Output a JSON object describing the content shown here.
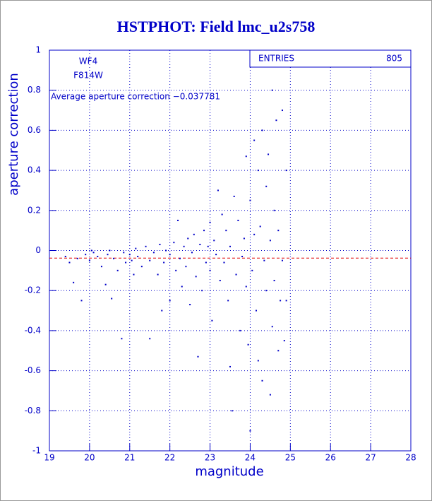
{
  "chart_data": {
    "type": "scatter",
    "title": "HSTPHOT: Field lmc_u2s758",
    "xlabel": "magnitude",
    "ylabel": "aperture correction",
    "annotations": [
      "WF4",
      "F814W",
      "Average aperture correction −0.037781"
    ],
    "stats": {
      "label": "ENTRIES",
      "value": 805
    },
    "hline": -0.037781,
    "hline_color": "#e00000",
    "color": "#0000c8",
    "grid": true,
    "xlim": [
      19,
      28
    ],
    "xticks": [
      19,
      20,
      21,
      22,
      23,
      24,
      25,
      26,
      27,
      28
    ],
    "ylim": [
      -1,
      1
    ],
    "yticks": [
      -1,
      -0.8,
      -0.6,
      -0.4,
      -0.2,
      0,
      0.2,
      0.4,
      0.6,
      0.8,
      1
    ],
    "x": [
      19.4,
      19.5,
      19.6,
      19.7,
      19.8,
      19.9,
      20.0,
      20.05,
      20.1,
      20.2,
      20.3,
      20.4,
      20.45,
      20.5,
      20.55,
      20.6,
      20.7,
      20.8,
      20.85,
      20.9,
      21.0,
      21.05,
      21.1,
      21.15,
      21.2,
      21.3,
      21.4,
      21.5,
      21.5,
      21.6,
      21.7,
      21.75,
      21.8,
      21.85,
      21.9,
      22.0,
      22.0,
      22.1,
      22.15,
      22.2,
      22.25,
      22.3,
      22.35,
      22.4,
      22.45,
      22.5,
      22.55,
      22.6,
      22.65,
      22.7,
      22.75,
      22.8,
      22.85,
      22.9,
      22.95,
      23.0,
      23.0,
      23.05,
      23.1,
      23.15,
      23.2,
      23.25,
      23.3,
      23.35,
      23.4,
      23.45,
      23.5,
      23.5,
      23.55,
      23.6,
      23.65,
      23.7,
      23.75,
      23.8,
      23.85,
      23.9,
      23.9,
      23.95,
      24.0,
      24.0,
      24.05,
      24.1,
      24.1,
      24.15,
      24.2,
      24.2,
      24.25,
      24.3,
      24.3,
      24.35,
      24.4,
      24.4,
      24.45,
      24.5,
      24.5,
      24.55,
      24.55,
      24.6,
      24.6,
      24.65,
      24.7,
      24.7,
      24.75,
      24.8,
      24.8,
      24.85,
      24.9,
      24.9
    ],
    "values": [
      -0.03,
      -0.06,
      -0.16,
      -0.04,
      -0.25,
      -0.02,
      -0.05,
      0.0,
      -0.01,
      -0.03,
      -0.08,
      -0.17,
      -0.02,
      0.0,
      -0.24,
      -0.04,
      -0.1,
      -0.44,
      -0.01,
      -0.06,
      -0.02,
      -0.05,
      -0.12,
      0.01,
      -0.03,
      -0.08,
      0.02,
      -0.44,
      -0.05,
      -0.01,
      -0.12,
      0.03,
      -0.3,
      -0.06,
      0.0,
      -0.02,
      -0.25,
      0.04,
      -0.1,
      0.15,
      -0.04,
      -0.18,
      0.02,
      -0.08,
      0.06,
      -0.27,
      -0.01,
      0.08,
      -0.13,
      -0.53,
      0.03,
      -0.2,
      0.1,
      -0.06,
      0.02,
      -0.1,
      0.14,
      -0.35,
      0.05,
      -0.02,
      0.3,
      -0.15,
      0.18,
      -0.06,
      0.1,
      -0.25,
      0.02,
      -0.58,
      -0.8,
      0.27,
      -0.12,
      0.15,
      -0.4,
      -0.03,
      0.06,
      0.47,
      -0.18,
      -0.47,
      -0.9,
      0.25,
      -0.1,
      0.55,
      0.08,
      -0.3,
      0.4,
      -0.55,
      0.12,
      -0.65,
      0.6,
      -0.05,
      0.32,
      -0.2,
      0.48,
      -0.72,
      0.05,
      0.8,
      -0.38,
      0.2,
      -0.15,
      0.65,
      -0.5,
      0.1,
      -0.25,
      0.7,
      -0.05,
      -0.45,
      0.4,
      -0.25
    ]
  }
}
